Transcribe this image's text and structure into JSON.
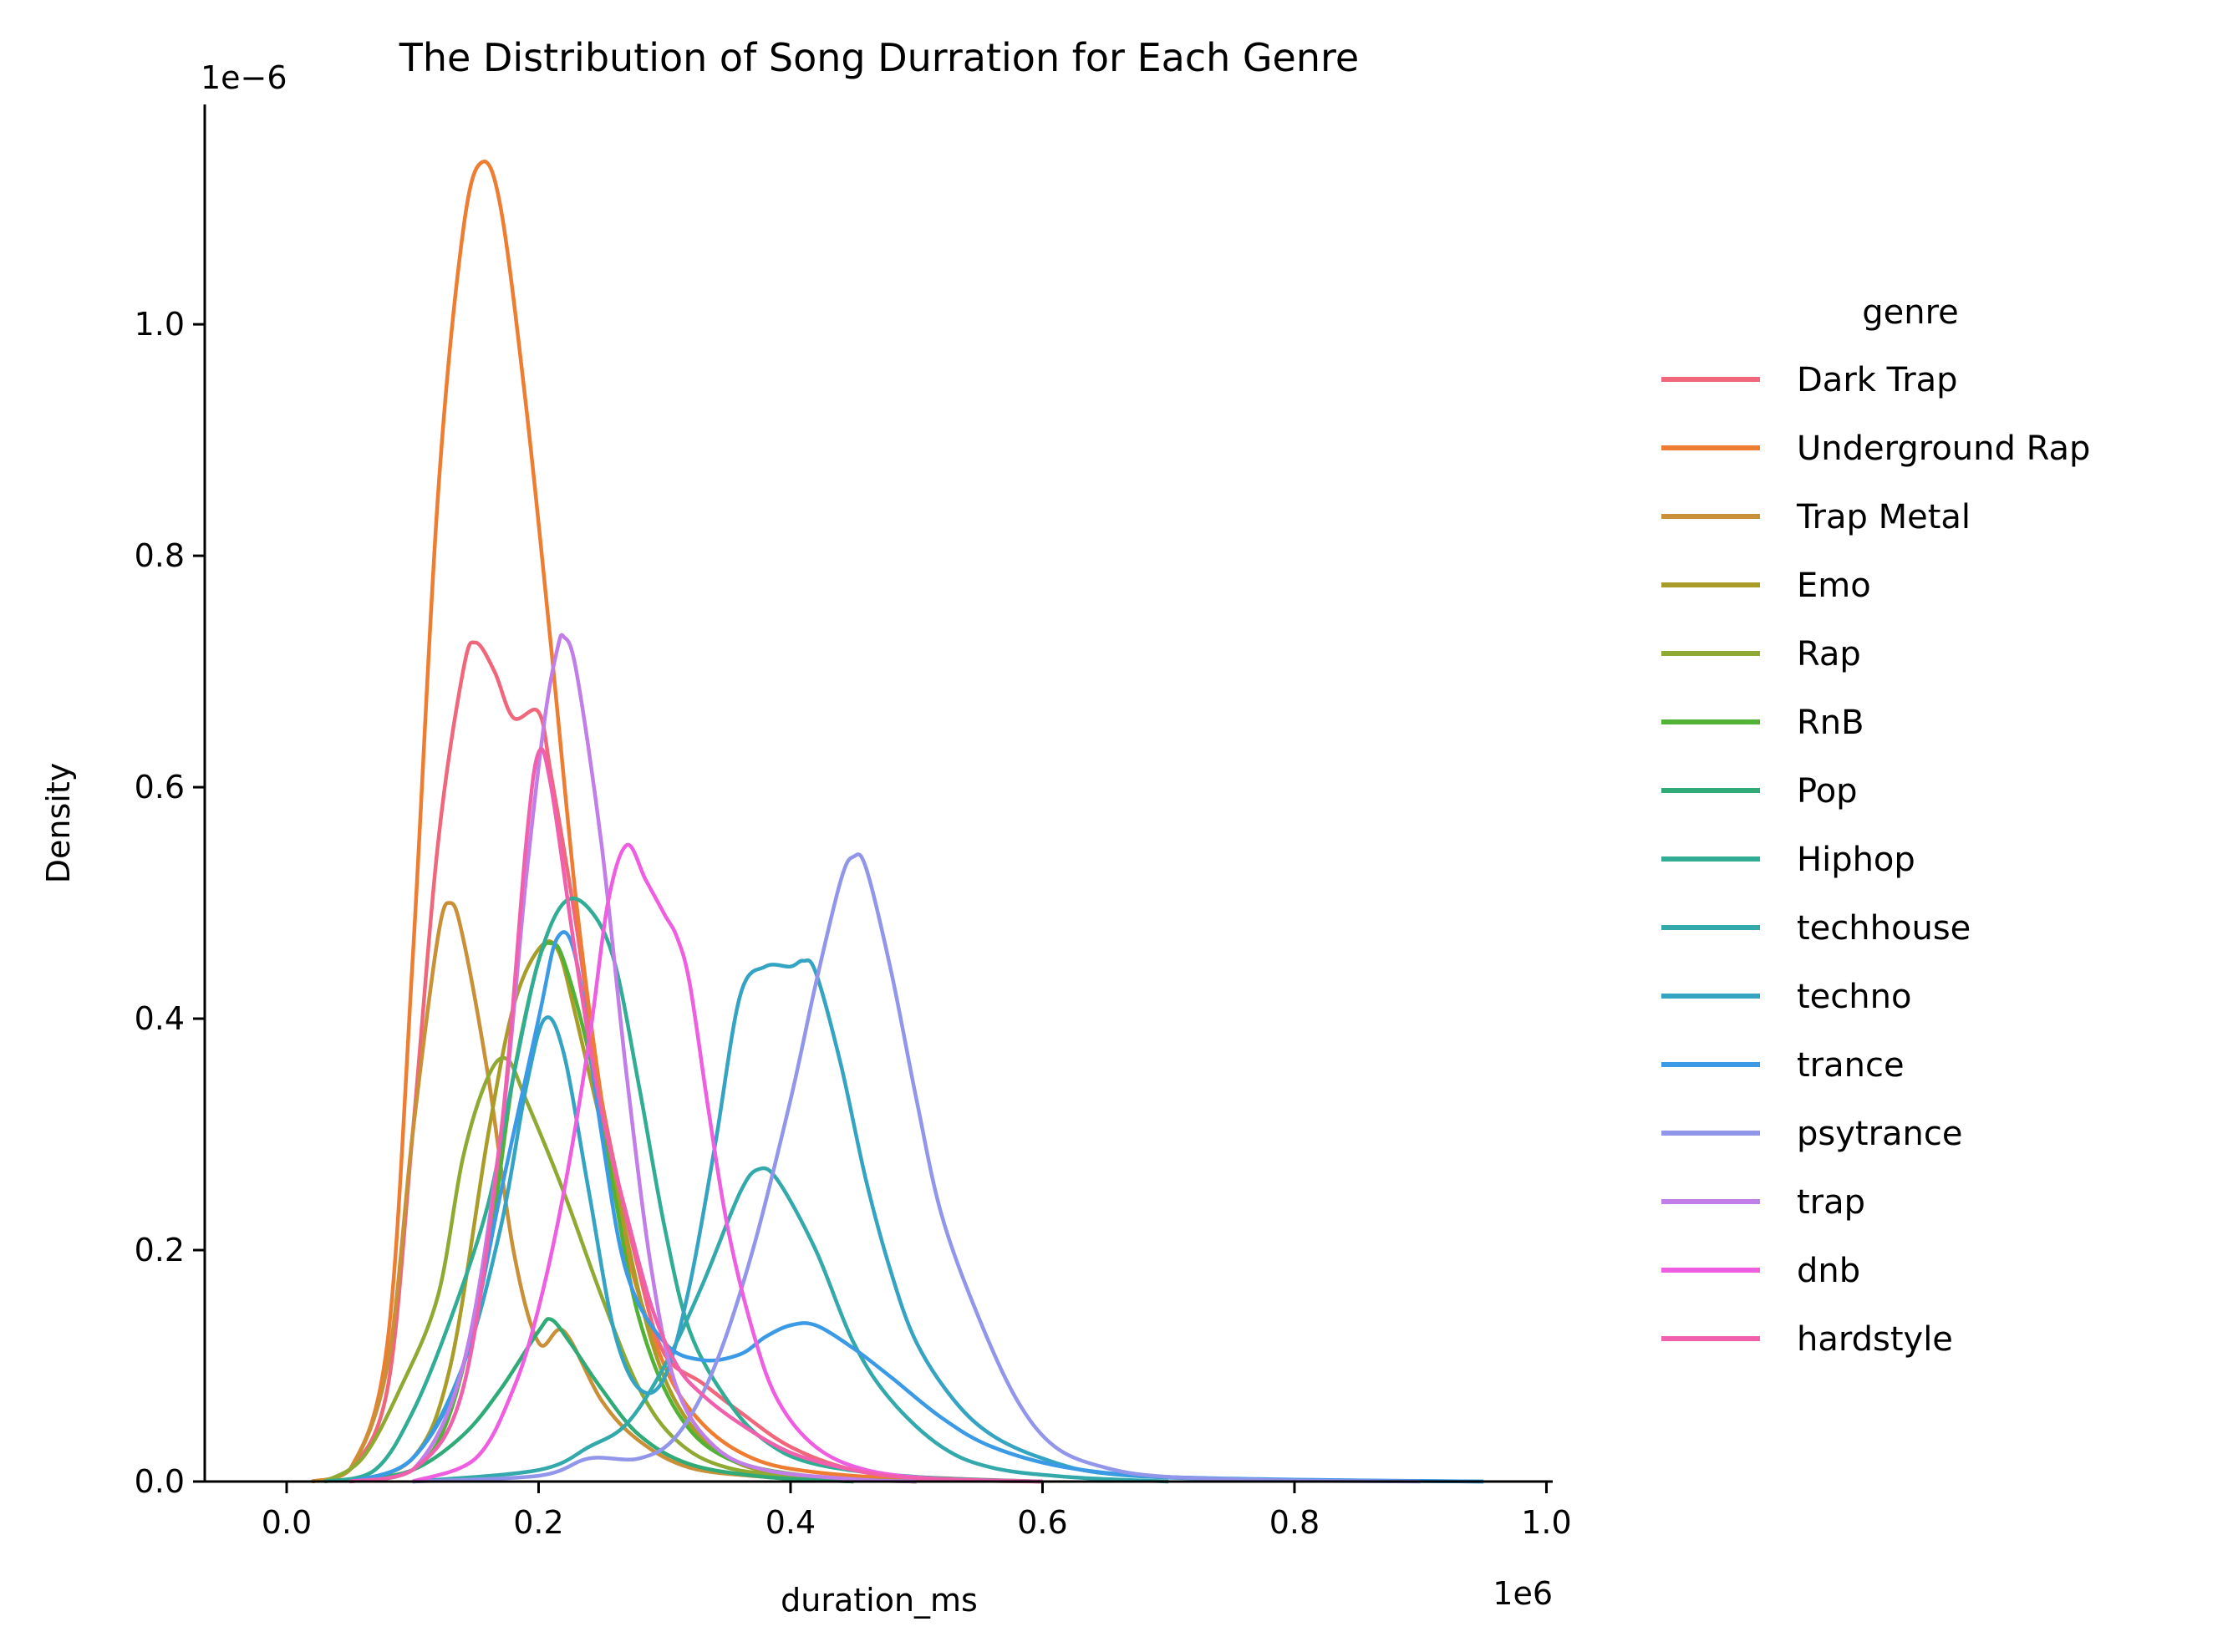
{
  "chart_data": {
    "type": "line",
    "title": "The Distribution of Song Durration for Each Genre",
    "xlabel": "duration_ms",
    "ylabel": "Density",
    "x_offset_label": "1e6",
    "y_offset_label": "1e−6",
    "x_unit_scale": 1000000,
    "y_unit_scale": 1e-06,
    "xlim": [
      -0.065,
      1.005
    ],
    "ylim": [
      0,
      1.19
    ],
    "x_ticks": [
      0.0,
      0.2,
      0.4,
      0.6,
      0.8,
      1.0
    ],
    "x_tick_labels": [
      "0.0",
      "0.2",
      "0.4",
      "0.6",
      "0.8",
      "1.0"
    ],
    "y_ticks": [
      0.0,
      0.2,
      0.4,
      0.6,
      0.8,
      1.0
    ],
    "y_tick_labels": [
      "0.0",
      "0.2",
      "0.4",
      "0.6",
      "0.8",
      "1.0"
    ],
    "grid": false,
    "legend": {
      "title": "genre",
      "placement": "right, outside plot"
    },
    "series": [
      {
        "name": "Dark Trap",
        "color": "#f0667a",
        "points": [
          [
            0.02,
            0
          ],
          [
            0.05,
            0.01
          ],
          [
            0.08,
            0.08
          ],
          [
            0.1,
            0.3
          ],
          [
            0.12,
            0.55
          ],
          [
            0.14,
            0.7
          ],
          [
            0.15,
            0.725
          ],
          [
            0.165,
            0.7
          ],
          [
            0.18,
            0.66
          ],
          [
            0.2,
            0.665
          ],
          [
            0.21,
            0.61
          ],
          [
            0.23,
            0.48
          ],
          [
            0.25,
            0.33
          ],
          [
            0.28,
            0.18
          ],
          [
            0.3,
            0.11
          ],
          [
            0.33,
            0.085
          ],
          [
            0.36,
            0.06
          ],
          [
            0.4,
            0.03
          ],
          [
            0.45,
            0.01
          ],
          [
            0.5,
            0.004
          ],
          [
            0.6,
            0
          ]
        ]
      },
      {
        "name": "Underground Rap",
        "color": "#ee7d31",
        "points": [
          [
            0.02,
            0
          ],
          [
            0.05,
            0.01
          ],
          [
            0.08,
            0.12
          ],
          [
            0.1,
            0.45
          ],
          [
            0.12,
            0.85
          ],
          [
            0.14,
            1.08
          ],
          [
            0.155,
            1.14
          ],
          [
            0.17,
            1.1
          ],
          [
            0.19,
            0.93
          ],
          [
            0.21,
            0.72
          ],
          [
            0.23,
            0.5
          ],
          [
            0.25,
            0.33
          ],
          [
            0.27,
            0.2
          ],
          [
            0.3,
            0.1
          ],
          [
            0.33,
            0.05
          ],
          [
            0.37,
            0.02
          ],
          [
            0.42,
            0.008
          ],
          [
            0.5,
            0.002
          ],
          [
            0.6,
            0
          ]
        ]
      },
      {
        "name": "Trap Metal",
        "color": "#c99038",
        "points": [
          [
            0.02,
            0
          ],
          [
            0.05,
            0.01
          ],
          [
            0.08,
            0.1
          ],
          [
            0.1,
            0.3
          ],
          [
            0.12,
            0.47
          ],
          [
            0.13,
            0.5
          ],
          [
            0.14,
            0.47
          ],
          [
            0.16,
            0.35
          ],
          [
            0.18,
            0.2
          ],
          [
            0.2,
            0.12
          ],
          [
            0.22,
            0.13
          ],
          [
            0.25,
            0.07
          ],
          [
            0.28,
            0.035
          ],
          [
            0.32,
            0.012
          ],
          [
            0.38,
            0.004
          ],
          [
            0.45,
            0
          ]
        ]
      },
      {
        "name": "Emo",
        "color": "#aa9c28",
        "points": [
          [
            0.05,
            0
          ],
          [
            0.1,
            0.02
          ],
          [
            0.13,
            0.1
          ],
          [
            0.16,
            0.3
          ],
          [
            0.18,
            0.41
          ],
          [
            0.2,
            0.46
          ],
          [
            0.215,
            0.46
          ],
          [
            0.23,
            0.4
          ],
          [
            0.26,
            0.26
          ],
          [
            0.29,
            0.12
          ],
          [
            0.32,
            0.05
          ],
          [
            0.36,
            0.015
          ],
          [
            0.42,
            0.004
          ],
          [
            0.5,
            0
          ]
        ]
      },
      {
        "name": "Rap",
        "color": "#8faa33",
        "points": [
          [
            0.03,
            0
          ],
          [
            0.06,
            0.02
          ],
          [
            0.09,
            0.08
          ],
          [
            0.12,
            0.16
          ],
          [
            0.14,
            0.28
          ],
          [
            0.16,
            0.35
          ],
          [
            0.175,
            0.365
          ],
          [
            0.19,
            0.33
          ],
          [
            0.22,
            0.25
          ],
          [
            0.25,
            0.16
          ],
          [
            0.28,
            0.08
          ],
          [
            0.31,
            0.035
          ],
          [
            0.35,
            0.012
          ],
          [
            0.42,
            0.003
          ],
          [
            0.5,
            0
          ]
        ]
      },
      {
        "name": "RnB",
        "color": "#52b236",
        "points": [
          [
            0.05,
            0
          ],
          [
            0.1,
            0.01
          ],
          [
            0.13,
            0.06
          ],
          [
            0.16,
            0.2
          ],
          [
            0.18,
            0.35
          ],
          [
            0.2,
            0.45
          ],
          [
            0.21,
            0.465
          ],
          [
            0.22,
            0.45
          ],
          [
            0.24,
            0.37
          ],
          [
            0.26,
            0.25
          ],
          [
            0.28,
            0.14
          ],
          [
            0.31,
            0.06
          ],
          [
            0.35,
            0.02
          ],
          [
            0.42,
            0.004
          ],
          [
            0.5,
            0
          ]
        ]
      },
      {
        "name": "Pop",
        "color": "#30ab77",
        "points": [
          [
            0.05,
            0
          ],
          [
            0.1,
            0.01
          ],
          [
            0.14,
            0.04
          ],
          [
            0.17,
            0.08
          ],
          [
            0.2,
            0.13
          ],
          [
            0.21,
            0.14
          ],
          [
            0.225,
            0.12
          ],
          [
            0.25,
            0.08
          ],
          [
            0.28,
            0.04
          ],
          [
            0.32,
            0.015
          ],
          [
            0.38,
            0.004
          ],
          [
            0.45,
            0
          ]
        ]
      },
      {
        "name": "Hiphop",
        "color": "#31ad95",
        "points": [
          [
            0.03,
            0
          ],
          [
            0.07,
            0.01
          ],
          [
            0.1,
            0.06
          ],
          [
            0.13,
            0.14
          ],
          [
            0.16,
            0.24
          ],
          [
            0.18,
            0.35
          ],
          [
            0.2,
            0.45
          ],
          [
            0.22,
            0.5
          ],
          [
            0.24,
            0.495
          ],
          [
            0.26,
            0.45
          ],
          [
            0.28,
            0.34
          ],
          [
            0.3,
            0.22
          ],
          [
            0.32,
            0.13
          ],
          [
            0.35,
            0.07
          ],
          [
            0.38,
            0.035
          ],
          [
            0.42,
            0.015
          ],
          [
            0.5,
            0.004
          ],
          [
            0.6,
            0
          ]
        ]
      },
      {
        "name": "techhouse",
        "color": "#33a9ac",
        "points": [
          [
            0.1,
            0
          ],
          [
            0.2,
            0.01
          ],
          [
            0.24,
            0.03
          ],
          [
            0.27,
            0.05
          ],
          [
            0.3,
            0.1
          ],
          [
            0.33,
            0.17
          ],
          [
            0.36,
            0.25
          ],
          [
            0.375,
            0.27
          ],
          [
            0.39,
            0.26
          ],
          [
            0.42,
            0.2
          ],
          [
            0.45,
            0.12
          ],
          [
            0.48,
            0.07
          ],
          [
            0.52,
            0.03
          ],
          [
            0.56,
            0.012
          ],
          [
            0.62,
            0.004
          ],
          [
            0.7,
            0
          ]
        ]
      },
      {
        "name": "techno",
        "color": "#35a4c2",
        "points": [
          [
            0.05,
            0
          ],
          [
            0.1,
            0.02
          ],
          [
            0.14,
            0.1
          ],
          [
            0.17,
            0.22
          ],
          [
            0.19,
            0.34
          ],
          [
            0.205,
            0.4
          ],
          [
            0.22,
            0.37
          ],
          [
            0.24,
            0.25
          ],
          [
            0.26,
            0.13
          ],
          [
            0.28,
            0.08
          ],
          [
            0.3,
            0.09
          ],
          [
            0.32,
            0.17
          ],
          [
            0.34,
            0.29
          ],
          [
            0.36,
            0.42
          ],
          [
            0.38,
            0.445
          ],
          [
            0.4,
            0.445
          ],
          [
            0.41,
            0.45
          ],
          [
            0.42,
            0.44
          ],
          [
            0.44,
            0.36
          ],
          [
            0.46,
            0.26
          ],
          [
            0.48,
            0.18
          ],
          [
            0.5,
            0.12
          ],
          [
            0.53,
            0.07
          ],
          [
            0.56,
            0.04
          ],
          [
            0.6,
            0.02
          ],
          [
            0.65,
            0.007
          ],
          [
            0.75,
            0.002
          ],
          [
            0.95,
            0
          ]
        ]
      },
      {
        "name": "trance",
        "color": "#3a9ae6",
        "points": [
          [
            0.05,
            0
          ],
          [
            0.1,
            0.02
          ],
          [
            0.14,
            0.1
          ],
          [
            0.17,
            0.25
          ],
          [
            0.2,
            0.4
          ],
          [
            0.215,
            0.47
          ],
          [
            0.23,
            0.45
          ],
          [
            0.25,
            0.3
          ],
          [
            0.27,
            0.18
          ],
          [
            0.3,
            0.12
          ],
          [
            0.33,
            0.105
          ],
          [
            0.36,
            0.11
          ],
          [
            0.38,
            0.125
          ],
          [
            0.4,
            0.135
          ],
          [
            0.42,
            0.135
          ],
          [
            0.45,
            0.115
          ],
          [
            0.48,
            0.09
          ],
          [
            0.52,
            0.055
          ],
          [
            0.56,
            0.03
          ],
          [
            0.62,
            0.012
          ],
          [
            0.7,
            0.004
          ],
          [
            0.85,
            0.001
          ],
          [
            0.95,
            0
          ]
        ]
      },
      {
        "name": "psytrance",
        "color": "#9196ea",
        "points": [
          [
            0.1,
            0
          ],
          [
            0.2,
            0.005
          ],
          [
            0.24,
            0.02
          ],
          [
            0.28,
            0.02
          ],
          [
            0.31,
            0.04
          ],
          [
            0.34,
            0.1
          ],
          [
            0.37,
            0.2
          ],
          [
            0.4,
            0.33
          ],
          [
            0.42,
            0.43
          ],
          [
            0.44,
            0.52
          ],
          [
            0.45,
            0.54
          ],
          [
            0.46,
            0.53
          ],
          [
            0.48,
            0.44
          ],
          [
            0.5,
            0.33
          ],
          [
            0.52,
            0.23
          ],
          [
            0.55,
            0.14
          ],
          [
            0.58,
            0.07
          ],
          [
            0.61,
            0.03
          ],
          [
            0.65,
            0.012
          ],
          [
            0.7,
            0.004
          ],
          [
            0.8,
            0.001
          ],
          [
            0.9,
            0
          ]
        ]
      },
      {
        "name": "trap",
        "color": "#c27ee8",
        "points": [
          [
            0.05,
            0
          ],
          [
            0.1,
            0.01
          ],
          [
            0.14,
            0.1
          ],
          [
            0.17,
            0.3
          ],
          [
            0.19,
            0.52
          ],
          [
            0.205,
            0.66
          ],
          [
            0.215,
            0.72
          ],
          [
            0.22,
            0.73
          ],
          [
            0.23,
            0.7
          ],
          [
            0.25,
            0.55
          ],
          [
            0.27,
            0.35
          ],
          [
            0.29,
            0.18
          ],
          [
            0.31,
            0.08
          ],
          [
            0.34,
            0.03
          ],
          [
            0.38,
            0.01
          ],
          [
            0.45,
            0.002
          ],
          [
            0.5,
            0
          ]
        ]
      },
      {
        "name": "dnb",
        "color": "#ef5ee0",
        "points": [
          [
            0.1,
            0
          ],
          [
            0.15,
            0.02
          ],
          [
            0.18,
            0.08
          ],
          [
            0.2,
            0.15
          ],
          [
            0.22,
            0.25
          ],
          [
            0.24,
            0.38
          ],
          [
            0.255,
            0.5
          ],
          [
            0.27,
            0.55
          ],
          [
            0.285,
            0.52
          ],
          [
            0.3,
            0.49
          ],
          [
            0.31,
            0.47
          ],
          [
            0.32,
            0.43
          ],
          [
            0.335,
            0.32
          ],
          [
            0.35,
            0.22
          ],
          [
            0.37,
            0.13
          ],
          [
            0.39,
            0.07
          ],
          [
            0.42,
            0.03
          ],
          [
            0.46,
            0.01
          ],
          [
            0.52,
            0.002
          ],
          [
            0.6,
            0
          ]
        ]
      },
      {
        "name": "hardstyle",
        "color": "#f060ad",
        "points": [
          [
            0.05,
            0
          ],
          [
            0.1,
            0.01
          ],
          [
            0.14,
            0.08
          ],
          [
            0.17,
            0.3
          ],
          [
            0.19,
            0.55
          ],
          [
            0.2,
            0.63
          ],
          [
            0.21,
            0.6
          ],
          [
            0.23,
            0.45
          ],
          [
            0.25,
            0.32
          ],
          [
            0.27,
            0.23
          ],
          [
            0.29,
            0.15
          ],
          [
            0.31,
            0.1
          ],
          [
            0.33,
            0.075
          ],
          [
            0.36,
            0.05
          ],
          [
            0.4,
            0.025
          ],
          [
            0.45,
            0.01
          ],
          [
            0.5,
            0.003
          ],
          [
            0.6,
            0
          ]
        ]
      }
    ]
  }
}
